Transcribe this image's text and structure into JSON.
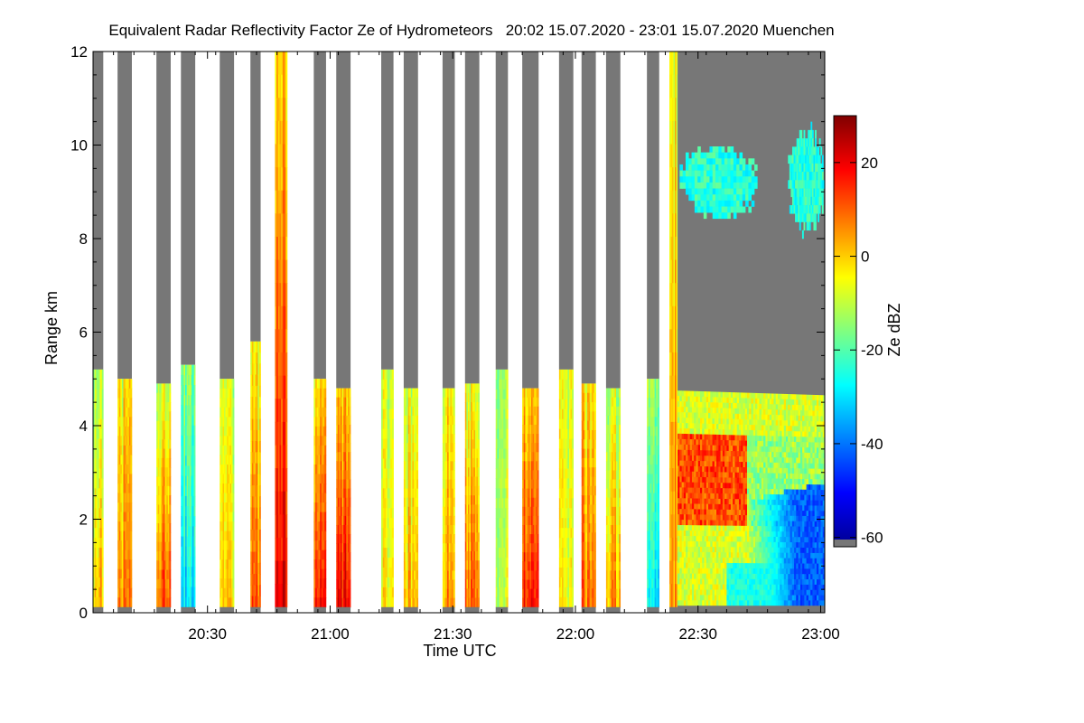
{
  "chart_data": {
    "type": "heatmap",
    "title": "Equivalent Radar Reflectivity Factor Ze of Hydrometeors   20:02 15.07.2020 - 23:01 15.07.2020 Muenchen",
    "xlabel": "Time UTC",
    "ylabel": "Range km",
    "colorbar_label": "Ze dBZ",
    "x_range_minutes": [
      0,
      179
    ],
    "ylim": [
      0,
      12
    ],
    "color_range": [
      -62,
      30
    ],
    "x_ticks": [
      {
        "label": "20:30",
        "minute": 28
      },
      {
        "label": "21:00",
        "minute": 58
      },
      {
        "label": "21:30",
        "minute": 88
      },
      {
        "label": "22:00",
        "minute": 118
      },
      {
        "label": "22:30",
        "minute": 148
      },
      {
        "label": "23:00",
        "minute": 178
      }
    ],
    "y_ticks": [
      0,
      2,
      4,
      6,
      8,
      10,
      12
    ],
    "colorbar_ticks": [
      20,
      0,
      -20,
      -40,
      -60
    ],
    "colormap": [
      "#00008f",
      "#0000ff",
      "#0080ff",
      "#00ffff",
      "#80ff80",
      "#ffff00",
      "#ff8000",
      "#ff0000",
      "#800000"
    ],
    "no_signal_color": "#777777",
    "scan_bursts": [
      {
        "start": 0.0,
        "end": 2.5,
        "gray_top": 5.2,
        "ze_low": 0,
        "ze_high": -12
      },
      {
        "start": 6.0,
        "end": 9.5,
        "gray_top": 5.0,
        "ze_low": 5,
        "ze_high": -5
      },
      {
        "start": 15.5,
        "end": 19.0,
        "gray_top": 4.9,
        "ze_low": 12,
        "ze_high": -8
      },
      {
        "start": 21.5,
        "end": 25.0,
        "gray_top": 5.3,
        "ze_low": -30,
        "ze_high": -15
      },
      {
        "start": 31.0,
        "end": 34.5,
        "gray_top": 5.0,
        "ze_low": -3,
        "ze_high": -10
      },
      {
        "start": 38.5,
        "end": 41.0,
        "gray_top": 5.8,
        "ze_low": 10,
        "ze_high": -6
      },
      {
        "start": 44.5,
        "end": 47.5,
        "gray_top": 12.0,
        "ze_low": 18,
        "ze_high": -2
      },
      {
        "start": 54.0,
        "end": 57.0,
        "gray_top": 5.0,
        "ze_low": 16,
        "ze_high": -2
      },
      {
        "start": 59.5,
        "end": 63.0,
        "gray_top": 4.8,
        "ze_low": 18,
        "ze_high": 0
      },
      {
        "start": 70.5,
        "end": 73.5,
        "gray_top": 5.2,
        "ze_low": -5,
        "ze_high": -10
      },
      {
        "start": 76.0,
        "end": 79.5,
        "gray_top": 4.8,
        "ze_low": 2,
        "ze_high": -8
      },
      {
        "start": 85.5,
        "end": 88.5,
        "gray_top": 4.8,
        "ze_low": 5,
        "ze_high": -4
      },
      {
        "start": 91.0,
        "end": 94.5,
        "gray_top": 4.9,
        "ze_low": 10,
        "ze_high": -6
      },
      {
        "start": 98.5,
        "end": 101.5,
        "gray_top": 5.2,
        "ze_low": -8,
        "ze_high": -12
      },
      {
        "start": 105.0,
        "end": 109.0,
        "gray_top": 4.8,
        "ze_low": 16,
        "ze_high": 0
      },
      {
        "start": 114.0,
        "end": 117.5,
        "gray_top": 5.2,
        "ze_low": -6,
        "ze_high": -8
      },
      {
        "start": 119.5,
        "end": 123.0,
        "gray_top": 4.9,
        "ze_low": 8,
        "ze_high": -2
      },
      {
        "start": 125.5,
        "end": 129.0,
        "gray_top": 4.8,
        "ze_low": 5,
        "ze_high": -10
      },
      {
        "start": 135.5,
        "end": 138.5,
        "gray_top": 5.0,
        "ze_low": -28,
        "ze_high": -12
      },
      {
        "start": 141.0,
        "end": 143.0,
        "gray_top": 12.0,
        "ze_low": 5,
        "ze_high": -5
      }
    ],
    "continuous_segment": {
      "start": 143.0,
      "end": 179.0,
      "cloud_top_start": 4.75,
      "cloud_top_end": 4.65,
      "ze_base": -8,
      "ze_core": 12,
      "ze_upper": -28,
      "clutter_start": 160,
      "clutter_ze": -42,
      "cirrus_patches": [
        {
          "x0": 143.5,
          "x1": 162.5,
          "y0": 8.3,
          "y1": 10.1,
          "ze": -24
        },
        {
          "x0": 170.0,
          "x1": 179.0,
          "y0": 8.0,
          "y1": 10.5,
          "ze": -24
        }
      ]
    }
  }
}
